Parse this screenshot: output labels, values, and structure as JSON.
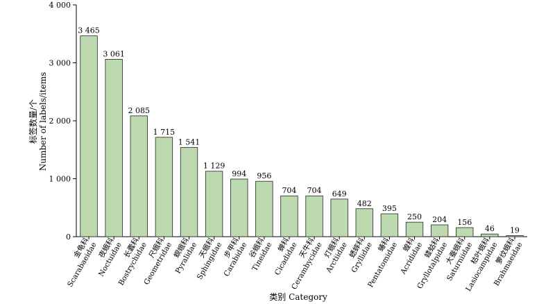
{
  "chart_data": {
    "type": "bar",
    "categories": [
      {
        "zh": "金龟科",
        "en": "Scarabaeidae"
      },
      {
        "zh": "夜蛾科",
        "en": "Noctuidae"
      },
      {
        "zh": "长蠹科",
        "en": "Bostrychidae"
      },
      {
        "zh": "尺蛾科",
        "en": "Geometridae"
      },
      {
        "zh": "螟蛾科",
        "en": "Pyralidae"
      },
      {
        "zh": "天蛾科",
        "en": "Sphingidae"
      },
      {
        "zh": "步甲科",
        "en": "Carabidae"
      },
      {
        "zh": "谷蛾科",
        "en": "Tineidae"
      },
      {
        "zh": "蝉科",
        "en": "Cicadidae"
      },
      {
        "zh": "天牛科",
        "en": "Cerambycidae"
      },
      {
        "zh": "灯蛾科",
        "en": "Arctiidae"
      },
      {
        "zh": "蟋蟀科",
        "en": "Gryllidae"
      },
      {
        "zh": "蝽科",
        "en": "Pentatomidae"
      },
      {
        "zh": "蝗科",
        "en": "Acrididae"
      },
      {
        "zh": "蝼蛄科",
        "en": "Gryllotalpidae"
      },
      {
        "zh": "大蚕蛾科",
        "en": "Saturniidae"
      },
      {
        "zh": "枯叶蛾科",
        "en": "Lasiocampidae"
      },
      {
        "zh": "箩纹蛾科",
        "en": "Brahmaeidae"
      }
    ],
    "values": [
      3465,
      3061,
      2085,
      1715,
      1541,
      1129,
      994,
      956,
      704,
      704,
      649,
      482,
      395,
      250,
      204,
      156,
      46,
      19
    ],
    "value_labels": [
      "3 465",
      "3 061",
      "2 085",
      "1 715",
      "1 541",
      "1 129",
      "994",
      "956",
      "704",
      "704",
      "649",
      "482",
      "395",
      "250",
      "204",
      "156",
      "46",
      "19"
    ],
    "ylabel_zh": "标签数量/个",
    "ylabel_en": "Number of labels/items",
    "xlabel": "类别 Category",
    "ylim": [
      0,
      4000
    ],
    "yticks": [
      0,
      1000,
      2000,
      3000,
      4000
    ],
    "ytick_labels": [
      "0",
      "1 000",
      "2 000",
      "3 000",
      "4 000"
    ],
    "bar_color": "#bcd9b0",
    "bar_edge_color": "#222222",
    "grid": false,
    "legend": "none"
  }
}
